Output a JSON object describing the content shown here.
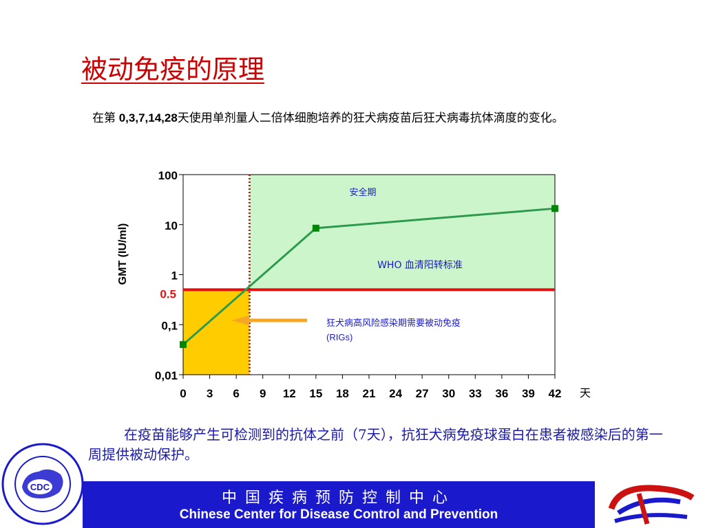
{
  "slide": {
    "title": "被动免疫的原理",
    "description_lead": "在第",
    "description_days": " 0,3,7,14,28",
    "description_rest": "天使用单剂量人二倍体细胞培养的狂犬病疫苗后狂犬病毒抗体滴度的变化。",
    "summary": "在疫苗能够产生可检测到的抗体之前（7天），抗狂犬病免疫球蛋白在患者被感染后的第一周提供被动保护。"
  },
  "chart_data": {
    "type": "line",
    "ylabel": "GMT (IU/ml)",
    "xunit": "天",
    "yscale": "log",
    "ylim": [
      0.01,
      100
    ],
    "yticks": [
      {
        "value": 100,
        "label": "100"
      },
      {
        "value": 10,
        "label": "10"
      },
      {
        "value": 1,
        "label": "1"
      },
      {
        "value": 0.1,
        "label": "0,1"
      },
      {
        "value": 0.01,
        "label": "0,01"
      }
    ],
    "xlim": [
      0,
      42
    ],
    "xticks": [
      0,
      3,
      6,
      9,
      12,
      15,
      18,
      21,
      24,
      27,
      30,
      33,
      36,
      39,
      42
    ],
    "series": [
      {
        "color": "#2e9a4e",
        "points": [
          [
            0,
            0.04
          ],
          [
            15,
            8.5
          ],
          [
            42,
            21
          ]
        ]
      }
    ],
    "threshold": {
      "value": 0.5,
      "label": "0.5",
      "color": "#e01010"
    },
    "vertical_marker": {
      "x": 7.5,
      "color": "#cc1111"
    },
    "regions": {
      "safe_label": "安全期",
      "safe_color": "#ccf5cc",
      "passive_color": "#ffcc00"
    },
    "annotations": {
      "who": "WHO 血清阳转标准",
      "passive_line1": "狂犬病高风险感染期需要被动免疫",
      "passive_line2": "(RIGs)",
      "arrow_color": "#f5a623"
    }
  },
  "footer": {
    "cn": "中国疾病预防控制中心",
    "en": "Chinese Center for Disease Control and Prevention",
    "band_color": "#1a1acc",
    "left_logo_text": "CDC"
  }
}
